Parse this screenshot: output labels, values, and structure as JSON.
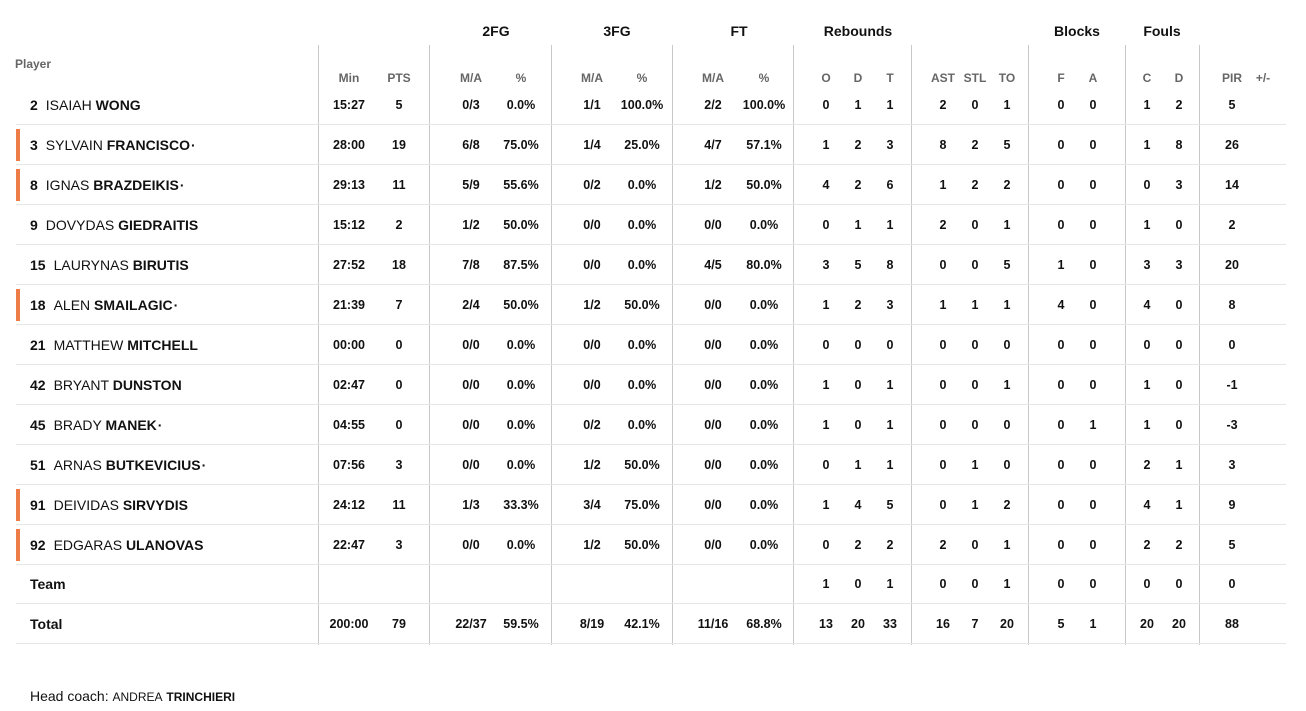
{
  "groups": [
    "2FG",
    "3FG",
    "FT",
    "Rebounds",
    "Blocks",
    "Fouls"
  ],
  "player_header": "Player",
  "columns": [
    "Min",
    "PTS",
    "M/A",
    "%",
    "M/A",
    "%",
    "M/A",
    "%",
    "O",
    "D",
    "T",
    "AST",
    "STL",
    "TO",
    "F",
    "A",
    "C",
    "D",
    "PIR",
    "+/-"
  ],
  "players": [
    {
      "num": "2",
      "first": "ISAIAH",
      "last": "WONG",
      "mark": "",
      "starter": false,
      "stats": [
        "15:27",
        "5",
        "0/3",
        "0.0%",
        "1/1",
        "100.0%",
        "2/2",
        "100.0%",
        "0",
        "1",
        "1",
        "2",
        "0",
        "1",
        "0",
        "0",
        "1",
        "2",
        "5",
        ""
      ]
    },
    {
      "num": "3",
      "first": "SYLVAIN",
      "last": "FRANCISCO",
      "mark": "·",
      "starter": true,
      "stats": [
        "28:00",
        "19",
        "6/8",
        "75.0%",
        "1/4",
        "25.0%",
        "4/7",
        "57.1%",
        "1",
        "2",
        "3",
        "8",
        "2",
        "5",
        "0",
        "0",
        "1",
        "8",
        "26",
        ""
      ]
    },
    {
      "num": "8",
      "first": "IGNAS",
      "last": "BRAZDEIKIS",
      "mark": "·",
      "starter": true,
      "stats": [
        "29:13",
        "11",
        "5/9",
        "55.6%",
        "0/2",
        "0.0%",
        "1/2",
        "50.0%",
        "4",
        "2",
        "6",
        "1",
        "2",
        "2",
        "0",
        "0",
        "0",
        "3",
        "14",
        ""
      ]
    },
    {
      "num": "9",
      "first": "DOVYDAS",
      "last": "GIEDRAITIS",
      "mark": "",
      "starter": false,
      "stats": [
        "15:12",
        "2",
        "1/2",
        "50.0%",
        "0/0",
        "0.0%",
        "0/0",
        "0.0%",
        "0",
        "1",
        "1",
        "2",
        "0",
        "1",
        "0",
        "0",
        "1",
        "0",
        "2",
        ""
      ]
    },
    {
      "num": "15",
      "first": "LAURYNAS",
      "last": "BIRUTIS",
      "mark": "",
      "starter": false,
      "stats": [
        "27:52",
        "18",
        "7/8",
        "87.5%",
        "0/0",
        "0.0%",
        "4/5",
        "80.0%",
        "3",
        "5",
        "8",
        "0",
        "0",
        "5",
        "1",
        "0",
        "3",
        "3",
        "20",
        ""
      ]
    },
    {
      "num": "18",
      "first": "ALEN",
      "last": "SMAILAGIC",
      "mark": "·",
      "starter": true,
      "stats": [
        "21:39",
        "7",
        "2/4",
        "50.0%",
        "1/2",
        "50.0%",
        "0/0",
        "0.0%",
        "1",
        "2",
        "3",
        "1",
        "1",
        "1",
        "4",
        "0",
        "4",
        "0",
        "8",
        ""
      ]
    },
    {
      "num": "21",
      "first": "MATTHEW",
      "last": "MITCHELL",
      "mark": "",
      "starter": false,
      "stats": [
        "00:00",
        "0",
        "0/0",
        "0.0%",
        "0/0",
        "0.0%",
        "0/0",
        "0.0%",
        "0",
        "0",
        "0",
        "0",
        "0",
        "0",
        "0",
        "0",
        "0",
        "0",
        "0",
        ""
      ]
    },
    {
      "num": "42",
      "first": "BRYANT",
      "last": "DUNSTON",
      "mark": "",
      "starter": false,
      "stats": [
        "02:47",
        "0",
        "0/0",
        "0.0%",
        "0/0",
        "0.0%",
        "0/0",
        "0.0%",
        "1",
        "0",
        "1",
        "0",
        "0",
        "1",
        "0",
        "0",
        "1",
        "0",
        "-1",
        ""
      ]
    },
    {
      "num": "45",
      "first": "BRADY",
      "last": "MANEK",
      "mark": "·",
      "starter": false,
      "stats": [
        "04:55",
        "0",
        "0/0",
        "0.0%",
        "0/2",
        "0.0%",
        "0/0",
        "0.0%",
        "1",
        "0",
        "1",
        "0",
        "0",
        "0",
        "0",
        "1",
        "1",
        "0",
        "-3",
        ""
      ]
    },
    {
      "num": "51",
      "first": "ARNAS",
      "last": "BUTKEVICIUS",
      "mark": "·",
      "starter": false,
      "stats": [
        "07:56",
        "3",
        "0/0",
        "0.0%",
        "1/2",
        "50.0%",
        "0/0",
        "0.0%",
        "0",
        "1",
        "1",
        "0",
        "1",
        "0",
        "0",
        "0",
        "2",
        "1",
        "3",
        ""
      ]
    },
    {
      "num": "91",
      "first": "DEIVIDAS",
      "last": "SIRVYDIS",
      "mark": "",
      "starter": true,
      "stats": [
        "24:12",
        "11",
        "1/3",
        "33.3%",
        "3/4",
        "75.0%",
        "0/0",
        "0.0%",
        "1",
        "4",
        "5",
        "0",
        "1",
        "2",
        "0",
        "0",
        "4",
        "1",
        "9",
        ""
      ]
    },
    {
      "num": "92",
      "first": "EDGARAS",
      "last": "ULANOVAS",
      "mark": "",
      "starter": true,
      "stats": [
        "22:47",
        "3",
        "0/0",
        "0.0%",
        "1/2",
        "50.0%",
        "0/0",
        "0.0%",
        "0",
        "2",
        "2",
        "2",
        "0",
        "1",
        "0",
        "0",
        "2",
        "2",
        "5",
        ""
      ]
    }
  ],
  "team": {
    "label": "Team",
    "stats": [
      "",
      "",
      "",
      "",
      "",
      "",
      "",
      "",
      "1",
      "0",
      "1",
      "0",
      "0",
      "1",
      "0",
      "0",
      "0",
      "0",
      "0",
      ""
    ]
  },
  "total": {
    "label": "Total",
    "stats": [
      "200:00",
      "79",
      "22/37",
      "59.5%",
      "8/19",
      "42.1%",
      "11/16",
      "68.8%",
      "13",
      "20",
      "33",
      "16",
      "7",
      "20",
      "5",
      "1",
      "20",
      "20",
      "88",
      ""
    ]
  },
  "coach": {
    "label": "Head coach:",
    "first": "ANDREA",
    "last": "TRINCHIERI"
  },
  "colors": {
    "starter_bar": "#ee7c46",
    "separator": "#e6e6e6",
    "divider": "#c9c9c9"
  }
}
